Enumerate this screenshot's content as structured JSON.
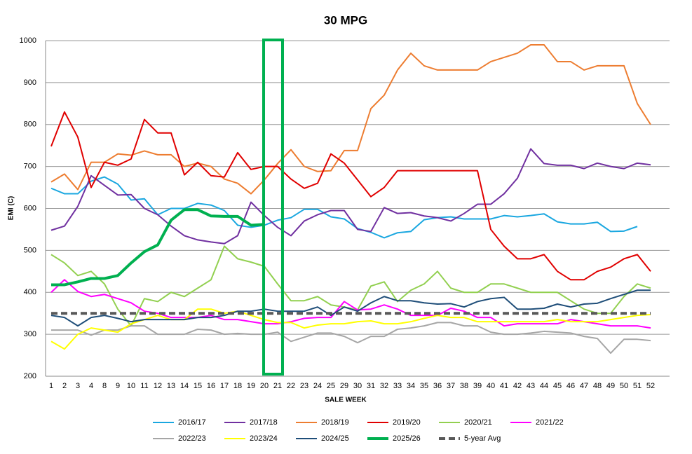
{
  "chart_data": {
    "type": "line",
    "title": "30 MPG",
    "x_label": "SALE WEEK",
    "y_label": "EMI (C)",
    "categories": [
      "1",
      "2",
      "3",
      "4",
      "8",
      "9",
      "10",
      "11",
      "12",
      "13",
      "14",
      "15",
      "16",
      "17",
      "18",
      "19",
      "20",
      "21",
      "22",
      "23",
      "24",
      "25",
      "29",
      "30",
      "31",
      "32",
      "33",
      "34",
      "35",
      "36",
      "37",
      "38",
      "39",
      "40",
      "41",
      "42",
      "43",
      "44",
      "45",
      "46",
      "47",
      "48",
      "49",
      "50",
      "51",
      "52"
    ],
    "ylim": [
      200,
      1000
    ],
    "yticks": [
      200,
      300,
      400,
      500,
      600,
      700,
      800,
      900,
      1000
    ],
    "grid": true,
    "legend": "bottom",
    "series": [
      {
        "name": "2016/17",
        "color": "#1aa7e0",
        "values": [
          648,
          635,
          635,
          665,
          675,
          658,
          620,
          623,
          585,
          600,
          600,
          612,
          608,
          595,
          560,
          555,
          560,
          572,
          578,
          598,
          598,
          580,
          575,
          552,
          543,
          530,
          542,
          545,
          573,
          578,
          580,
          575,
          575,
          575,
          583,
          580,
          583,
          587,
          568,
          563,
          563,
          567,
          545,
          546,
          557,
          null
        ]
      },
      {
        "name": "2017/18",
        "color": "#7030a0",
        "values": [
          548,
          558,
          605,
          678,
          655,
          632,
          633,
          600,
          585,
          558,
          535,
          525,
          520,
          516,
          535,
          615,
          583,
          555,
          535,
          570,
          585,
          595,
          595,
          550,
          545,
          602,
          588,
          590,
          582,
          578,
          570,
          588,
          610,
          610,
          635,
          672,
          742,
          707,
          703,
          703,
          695,
          708,
          700,
          695,
          708,
          704
        ]
      },
      {
        "name": "2018/19",
        "color": "#ed7d31",
        "values": [
          663,
          682,
          645,
          710,
          710,
          730,
          727,
          737,
          728,
          728,
          700,
          708,
          700,
          670,
          660,
          635,
          668,
          707,
          740,
          700,
          688,
          690,
          738,
          738,
          838,
          870,
          930,
          970,
          940,
          930,
          930,
          930,
          930,
          950,
          960,
          970,
          990,
          990,
          950,
          950,
          930,
          940,
          940,
          940,
          850,
          800
        ]
      },
      {
        "name": "2019/20",
        "color": "#e00000",
        "values": [
          748,
          830,
          770,
          650,
          710,
          703,
          718,
          812,
          780,
          780,
          680,
          710,
          678,
          675,
          733,
          693,
          700,
          700,
          670,
          648,
          660,
          730,
          708,
          668,
          628,
          650,
          690,
          690,
          690,
          690,
          690,
          690,
          690,
          550,
          510,
          480,
          480,
          490,
          450,
          430,
          430,
          450,
          460,
          480,
          490,
          450
        ]
      },
      {
        "name": "2020/21",
        "color": "#92d050",
        "values": [
          490,
          470,
          440,
          450,
          420,
          360,
          320,
          385,
          378,
          400,
          390,
          410,
          430,
          510,
          480,
          472,
          462,
          420,
          380,
          380,
          390,
          370,
          365,
          358,
          415,
          425,
          378,
          405,
          420,
          450,
          410,
          400,
          400,
          420,
          420,
          410,
          400,
          400,
          400,
          380,
          360,
          350,
          350,
          390,
          420,
          410
        ]
      },
      {
        "name": "2021/22",
        "color": "#ff00ff",
        "values": [
          400,
          430,
          402,
          390,
          395,
          385,
          375,
          355,
          350,
          340,
          340,
          340,
          345,
          335,
          335,
          330,
          325,
          325,
          330,
          338,
          340,
          340,
          378,
          358,
          360,
          370,
          360,
          345,
          345,
          345,
          362,
          355,
          340,
          340,
          320,
          325,
          325,
          325,
          325,
          335,
          330,
          325,
          320,
          320,
          320,
          315
        ]
      },
      {
        "name": "2022/23",
        "color": "#a6a6a6",
        "values": [
          310,
          310,
          310,
          298,
          310,
          310,
          320,
          320,
          300,
          300,
          300,
          312,
          310,
          300,
          302,
          300,
          300,
          305,
          283,
          293,
          303,
          303,
          295,
          280,
          295,
          295,
          312,
          315,
          320,
          328,
          328,
          320,
          320,
          305,
          300,
          300,
          303,
          307,
          305,
          303,
          295,
          290,
          255,
          288,
          288,
          285
        ]
      },
      {
        "name": "2023/24",
        "color": "#ffff00",
        "values": [
          283,
          265,
          300,
          315,
          310,
          305,
          325,
          335,
          345,
          335,
          335,
          360,
          360,
          350,
          355,
          345,
          335,
          328,
          328,
          315,
          322,
          325,
          325,
          330,
          332,
          325,
          325,
          330,
          338,
          345,
          340,
          340,
          330,
          330,
          330,
          330,
          330,
          330,
          335,
          330,
          330,
          330,
          335,
          340,
          345,
          347
        ]
      },
      {
        "name": "2024/25",
        "color": "#1f4e79",
        "values": [
          345,
          340,
          320,
          340,
          345,
          338,
          330,
          335,
          335,
          335,
          335,
          340,
          340,
          345,
          355,
          355,
          360,
          355,
          355,
          355,
          365,
          345,
          365,
          355,
          375,
          390,
          380,
          380,
          375,
          372,
          373,
          365,
          378,
          385,
          388,
          360,
          360,
          362,
          372,
          365,
          372,
          374,
          385,
          395,
          405,
          405
        ]
      },
      {
        "name": "2025/26",
        "color": "#00b050",
        "line_width": 4,
        "values": [
          418,
          418,
          425,
          433,
          433,
          440,
          470,
          497,
          513,
          572,
          597,
          597,
          582,
          581,
          581,
          560,
          562,
          null,
          null,
          null,
          null,
          null,
          null,
          null,
          null,
          null,
          null,
          null,
          null,
          null,
          null,
          null,
          null,
          null,
          null,
          null,
          null,
          null,
          null,
          null,
          null,
          null,
          null,
          null,
          null,
          null
        ]
      },
      {
        "name": "5-year Avg",
        "color": "#595959",
        "line_width": 4,
        "line_style": "dashed",
        "values": [
          350,
          350,
          350,
          350,
          350,
          350,
          350,
          350,
          350,
          350,
          350,
          350,
          350,
          350,
          350,
          350,
          350,
          350,
          350,
          350,
          350,
          350,
          350,
          350,
          350,
          350,
          350,
          350,
          350,
          350,
          350,
          350,
          350,
          350,
          350,
          350,
          350,
          350,
          350,
          350,
          350,
          350,
          350,
          350,
          350,
          350
        ]
      }
    ]
  }
}
